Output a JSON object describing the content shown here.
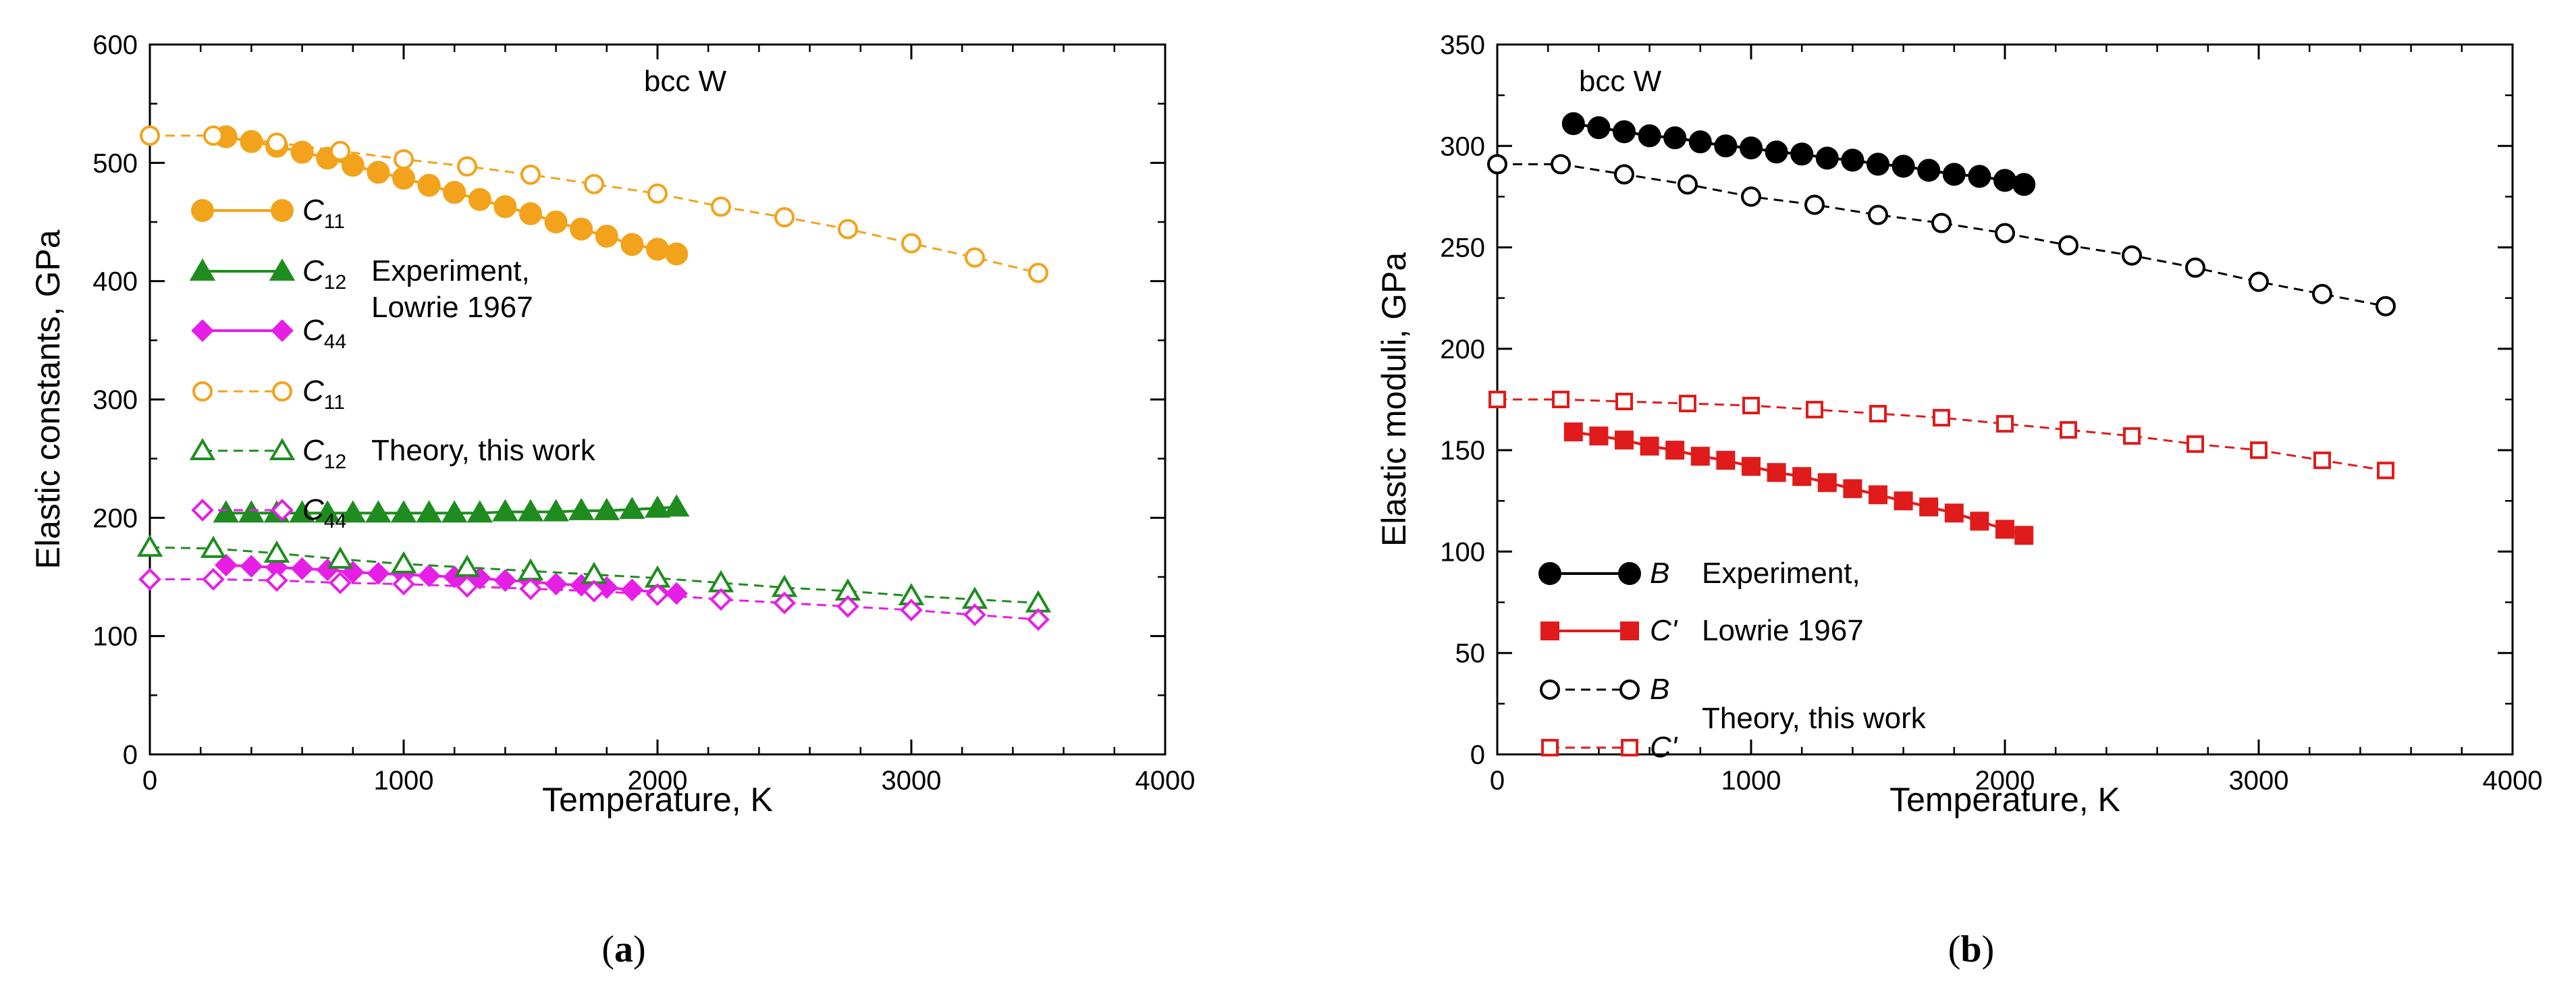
{
  "chart_data": [
    {
      "type": "line",
      "panel_label": "(a)",
      "title": "bcc W",
      "xlabel": "Temperature, K",
      "ylabel": "Elastic constants, GPa",
      "xlim": [
        0,
        4000
      ],
      "ylim": [
        0,
        600
      ],
      "xticks": [
        "0",
        "1000",
        "2000",
        "3000",
        "4000"
      ],
      "yticks": [
        "0",
        "100",
        "200",
        "300",
        "400",
        "500",
        "600"
      ],
      "legend_groups": [
        {
          "label1": "Experiment,",
          "label2": "Lowrie 1967"
        },
        {
          "label1": "Theory, this work",
          "label2": ""
        }
      ],
      "series": [
        {
          "name": "C11",
          "sub": "11",
          "group": "Experiment",
          "color": "#F2A31B",
          "marker": "circle",
          "filled": true,
          "dashed": false,
          "x": [
            300,
            400,
            500,
            600,
            700,
            800,
            900,
            1000,
            1100,
            1200,
            1300,
            1400,
            1500,
            1600,
            1700,
            1800,
            1900,
            2000,
            2075
          ],
          "y": [
            522,
            518,
            514,
            509,
            504,
            498,
            492,
            487,
            481,
            475,
            469,
            463,
            457,
            450,
            444,
            438,
            431,
            427,
            423
          ]
        },
        {
          "name": "C12",
          "sub": "12",
          "group": "Experiment",
          "color": "#1E8C1E",
          "marker": "triangle",
          "filled": true,
          "dashed": false,
          "x": [
            300,
            400,
            500,
            600,
            700,
            800,
            900,
            1000,
            1100,
            1200,
            1300,
            1400,
            1500,
            1600,
            1700,
            1800,
            1900,
            2000,
            2075
          ],
          "y": [
            204,
            204,
            204,
            204,
            204,
            204,
            204,
            204,
            204,
            204,
            204,
            205,
            205,
            205,
            206,
            206,
            207,
            208,
            209
          ]
        },
        {
          "name": "C44",
          "sub": "44",
          "group": "Experiment",
          "color": "#E61EE6",
          "marker": "diamond",
          "filled": true,
          "dashed": false,
          "x": [
            300,
            400,
            500,
            600,
            700,
            800,
            900,
            1000,
            1100,
            1200,
            1300,
            1400,
            1500,
            1600,
            1700,
            1800,
            1900,
            2000,
            2075
          ],
          "y": [
            160,
            159,
            158,
            157,
            156,
            154,
            153,
            152,
            151,
            150,
            149,
            147,
            146,
            144,
            143,
            141,
            139,
            137,
            136
          ]
        },
        {
          "name": "C11",
          "sub": "11",
          "group": "Theory",
          "color": "#F2A31B",
          "marker": "circle",
          "filled": false,
          "dashed": true,
          "x": [
            0,
            250,
            500,
            750,
            1000,
            1250,
            1500,
            1750,
            2000,
            2250,
            2500,
            2750,
            3000,
            3250,
            3500
          ],
          "y": [
            523,
            523,
            517,
            510,
            503,
            497,
            490,
            482,
            474,
            463,
            454,
            444,
            432,
            420,
            407
          ]
        },
        {
          "name": "C12",
          "sub": "12",
          "group": "Theory",
          "color": "#1E8C1E",
          "marker": "triangle",
          "filled": false,
          "dashed": true,
          "x": [
            0,
            250,
            500,
            750,
            1000,
            1250,
            1500,
            1750,
            2000,
            2250,
            2500,
            2750,
            3000,
            3250,
            3500
          ],
          "y": [
            175,
            174,
            170,
            165,
            161,
            158,
            155,
            152,
            149,
            145,
            141,
            138,
            134,
            131,
            128
          ]
        },
        {
          "name": "C44",
          "sub": "44",
          "group": "Theory",
          "color": "#E61EE6",
          "marker": "diamond",
          "filled": false,
          "dashed": true,
          "x": [
            0,
            250,
            500,
            750,
            1000,
            1250,
            1500,
            1750,
            2000,
            2250,
            2500,
            2750,
            3000,
            3250,
            3500
          ],
          "y": [
            148,
            148,
            147,
            145,
            144,
            142,
            140,
            138,
            135,
            131,
            128,
            125,
            122,
            118,
            114
          ]
        }
      ]
    },
    {
      "type": "line",
      "panel_label": "(b)",
      "title": "bcc W",
      "xlabel": "Temperature, K",
      "ylabel": "Elastic moduli, GPa",
      "xlim": [
        0,
        4000
      ],
      "ylim": [
        0,
        350
      ],
      "xticks": [
        "0",
        "1000",
        "2000",
        "3000",
        "4000"
      ],
      "yticks": [
        "0",
        "50",
        "100",
        "150",
        "200",
        "250",
        "300",
        "350"
      ],
      "legend_groups": [
        {
          "label1": "Experiment,",
          "label2": "Lowrie 1967"
        },
        {
          "label1": "Theory, this work",
          "label2": ""
        }
      ],
      "series": [
        {
          "name": "B",
          "group": "Experiment",
          "color": "#000000",
          "marker": "circle",
          "filled": true,
          "dashed": false,
          "x": [
            300,
            400,
            500,
            600,
            700,
            800,
            900,
            1000,
            1100,
            1200,
            1300,
            1400,
            1500,
            1600,
            1700,
            1800,
            1900,
            2000,
            2075
          ],
          "y": [
            311,
            309,
            307,
            305,
            304,
            302,
            300,
            299,
            297,
            296,
            294,
            293,
            291,
            290,
            288,
            286,
            285,
            283,
            281
          ]
        },
        {
          "name": "C'",
          "group": "Experiment",
          "color": "#E01B1B",
          "marker": "square",
          "filled": true,
          "dashed": false,
          "x": [
            300,
            400,
            500,
            600,
            700,
            800,
            900,
            1000,
            1100,
            1200,
            1300,
            1400,
            1500,
            1600,
            1700,
            1800,
            1900,
            2000,
            2075
          ],
          "y": [
            159,
            157,
            155,
            152,
            150,
            147,
            145,
            142,
            139,
            137,
            134,
            131,
            128,
            125,
            122,
            119,
            115,
            111,
            108
          ]
        },
        {
          "name": "B",
          "group": "Theory",
          "color": "#000000",
          "marker": "circle",
          "filled": false,
          "dashed": true,
          "x": [
            0,
            250,
            500,
            750,
            1000,
            1250,
            1500,
            1750,
            2000,
            2250,
            2500,
            2750,
            3000,
            3250,
            3500
          ],
          "y": [
            291,
            291,
            286,
            281,
            275,
            271,
            266,
            262,
            257,
            251,
            246,
            240,
            233,
            227,
            221
          ]
        },
        {
          "name": "C'",
          "group": "Theory",
          "color": "#E01B1B",
          "marker": "square",
          "filled": false,
          "dashed": true,
          "x": [
            0,
            250,
            500,
            750,
            1000,
            1250,
            1500,
            1750,
            2000,
            2250,
            2500,
            2750,
            3000,
            3250,
            3500
          ],
          "y": [
            175,
            175,
            174,
            173,
            172,
            170,
            168,
            166,
            163,
            160,
            157,
            153,
            150,
            145,
            140
          ]
        }
      ]
    }
  ]
}
